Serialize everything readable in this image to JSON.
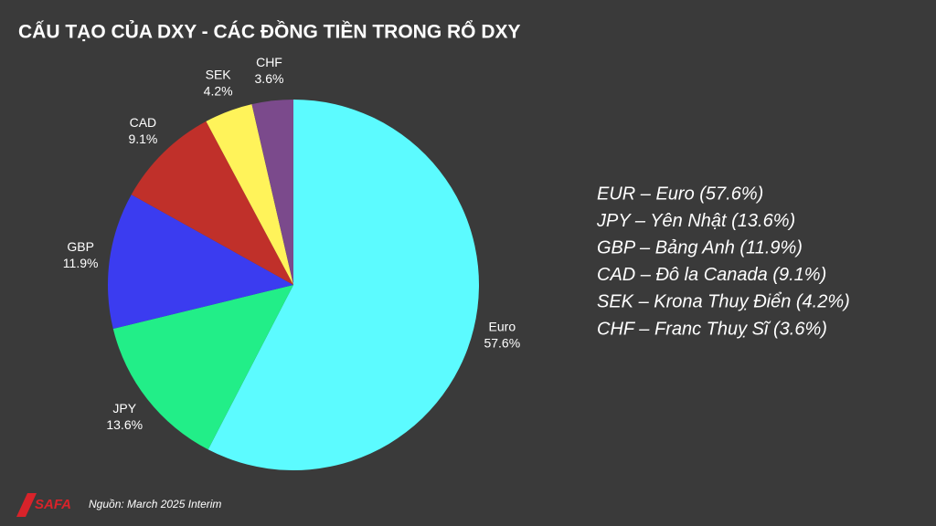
{
  "chart_data": {
    "type": "pie",
    "title": "CẤU TẠO CỦA DXY - CÁC ĐỒNG TIỀN TRONG RỔ DXY",
    "categories": [
      "Euro",
      "JPY",
      "GBP",
      "CAD",
      "SEK",
      "CHF"
    ],
    "values": [
      57.6,
      13.6,
      11.9,
      9.1,
      4.2,
      3.6
    ],
    "value_labels": [
      "57.6%",
      "13.6%",
      "11.9%",
      "9.1%",
      "4.2%",
      "3.6%"
    ],
    "colors": [
      "#5cfbff",
      "#22ee88",
      "#3b3cf0",
      "#c0302a",
      "#fff35a",
      "#7b4a8c"
    ],
    "legend_text": [
      "EUR – Euro (57.6%)",
      "JPY – Yên Nhật (13.6%)",
      "GBP – Bảng Anh (11.9%)",
      "CAD – Đô la Canada (9.1%)",
      "SEK – Krona Thuỵ Điển (4.2%)",
      "CHF – Franc Thuỵ Sĩ (3.6%)"
    ],
    "source": "Nguồn: March 2025 Interim",
    "logo": "SAFA"
  }
}
